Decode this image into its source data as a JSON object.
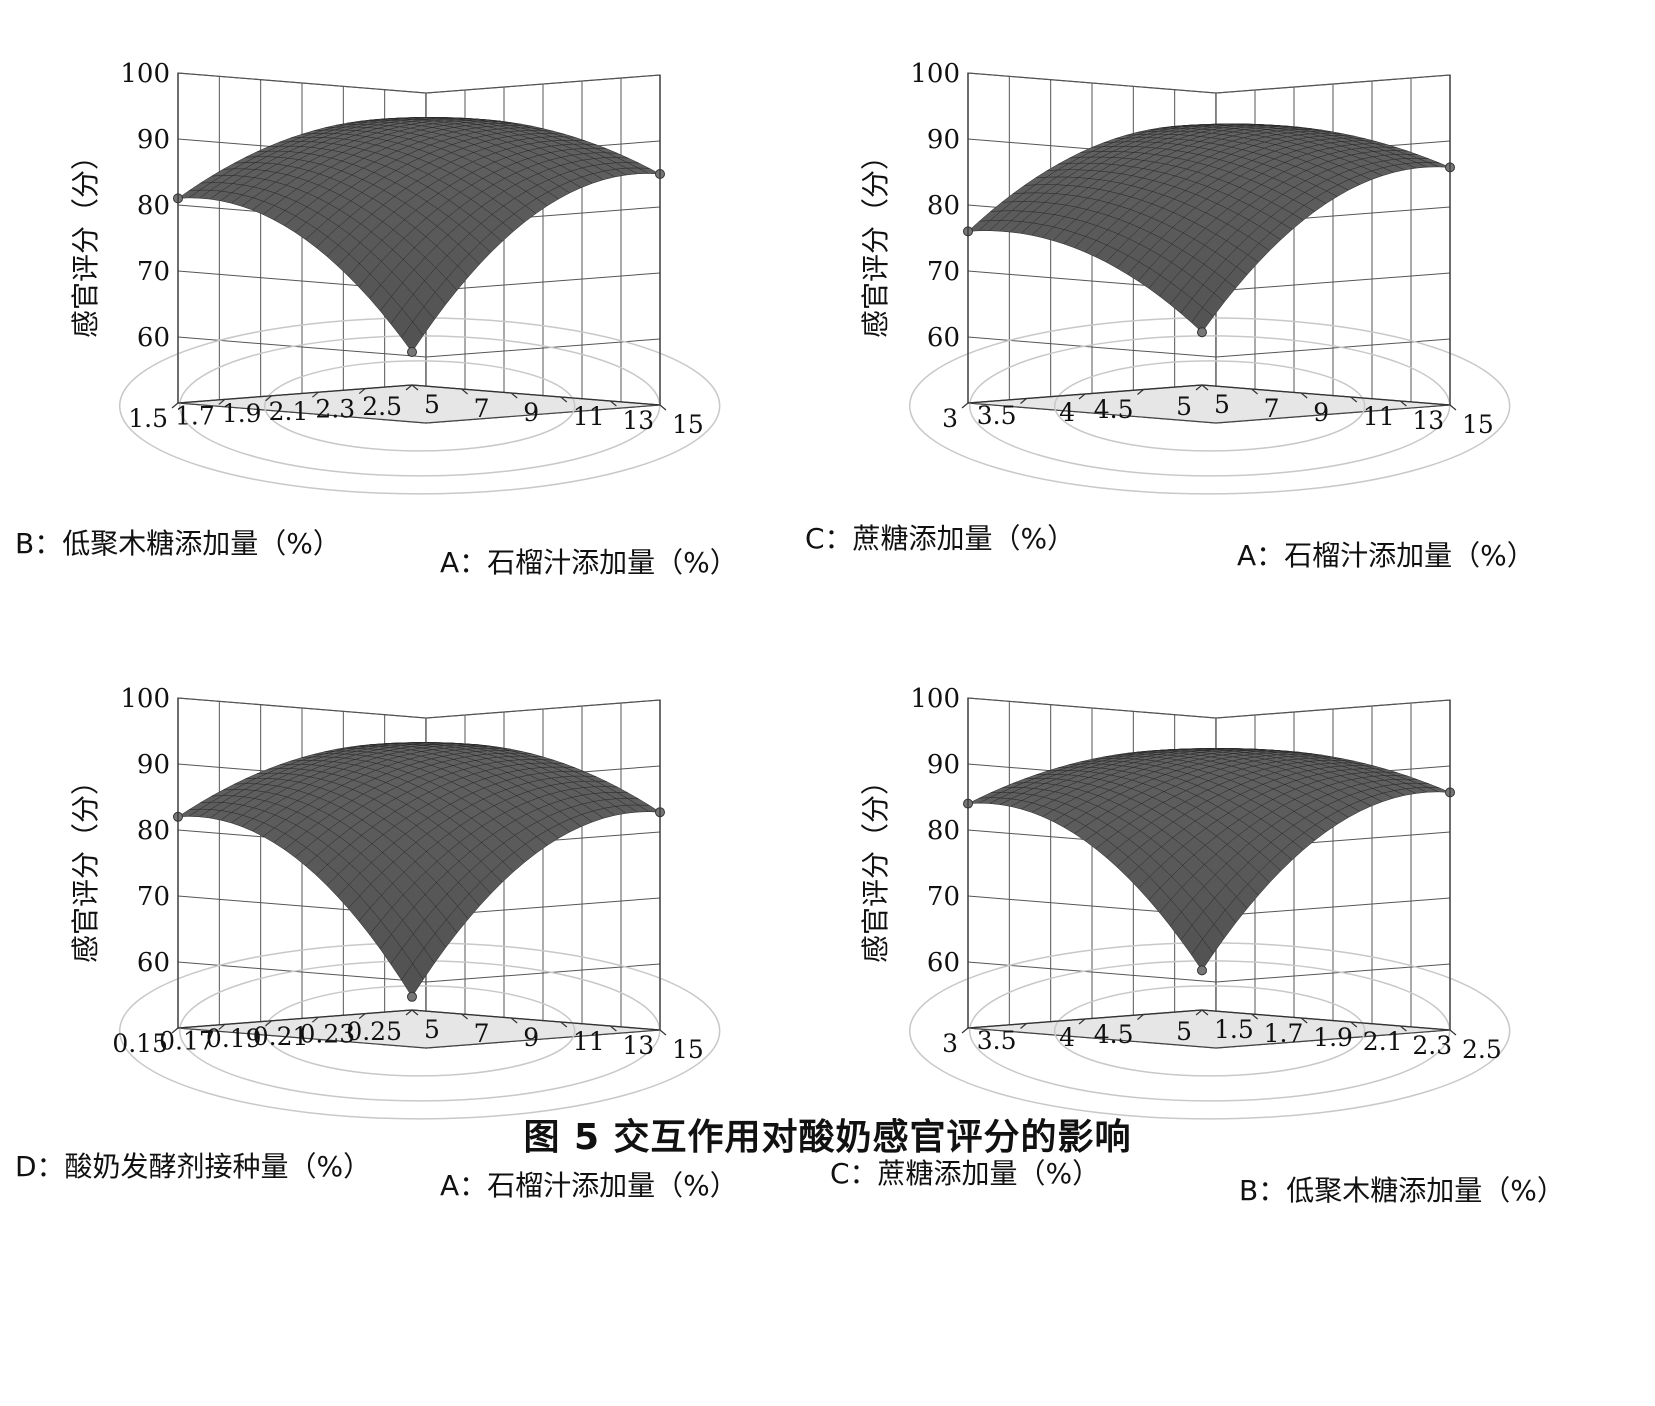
{
  "figure": {
    "caption": "图 5    交互作用对酸奶感官评分的影响",
    "surface_color": "#555555",
    "floor_color": "#e6e6e6"
  },
  "chart_data": [
    {
      "type": "surface3d",
      "zlabel": "感官评分（分）",
      "zticks": [
        "60",
        "70",
        "80",
        "90",
        "100"
      ],
      "zlim": [
        50,
        100
      ],
      "right_axis": {
        "label": "A：石榴汁添加量（%）",
        "ticks": [
          "5",
          "7",
          "9",
          "11",
          "13",
          "15"
        ],
        "range": [
          5,
          15
        ]
      },
      "left_axis": {
        "label": "B：低聚木糖添加量（%）",
        "ticks": [
          "1.5",
          "1.7",
          "1.9",
          "2.1",
          "2.3",
          "2.5"
        ],
        "range": [
          1.5,
          2.5
        ]
      },
      "surface": {
        "center": 96,
        "left_end": 81,
        "right_end": 85,
        "near_corner": 55
      }
    },
    {
      "type": "surface3d",
      "zlabel": "感官评分（分）",
      "zticks": [
        "60",
        "70",
        "80",
        "90",
        "100"
      ],
      "zlim": [
        50,
        100
      ],
      "right_axis": {
        "label": "A：石榴汁添加量（%）",
        "ticks": [
          "5",
          "7",
          "9",
          "11",
          "13",
          "15"
        ],
        "range": [
          5,
          15
        ]
      },
      "left_axis": {
        "label": "C：蔗糖添加量（%）",
        "ticks": [
          "3",
          "3.5",
          "4",
          "4.5",
          "5"
        ],
        "range": [
          3,
          5
        ]
      },
      "surface": {
        "center": 95,
        "left_end": 76,
        "right_end": 86,
        "near_corner": 58
      }
    },
    {
      "type": "surface3d",
      "zlabel": "感官评分（分）",
      "zticks": [
        "60",
        "70",
        "80",
        "90",
        "100"
      ],
      "zlim": [
        50,
        100
      ],
      "right_axis": {
        "label": "A：石榴汁添加量（%）",
        "ticks": [
          "5",
          "7",
          "9",
          "11",
          "13",
          "15"
        ],
        "range": [
          5,
          15
        ]
      },
      "left_axis": {
        "label": "D：酸奶发酵剂接种量（%）",
        "ticks": [
          "0.15",
          "0.17",
          "0.19",
          "0.21",
          "0.23",
          "0.25"
        ],
        "range": [
          0.15,
          0.25
        ]
      },
      "surface": {
        "center": 96,
        "left_end": 82,
        "right_end": 83,
        "near_corner": 52
      }
    },
    {
      "type": "surface3d",
      "zlabel": "感官评分（分）",
      "zticks": [
        "60",
        "70",
        "80",
        "90",
        "100"
      ],
      "zlim": [
        50,
        100
      ],
      "right_axis": {
        "label": "B：低聚木糖添加量（%）",
        "ticks": [
          "1.5",
          "1.7",
          "1.9",
          "2.1",
          "2.3",
          "2.5"
        ],
        "range": [
          1.5,
          2.5
        ]
      },
      "left_axis": {
        "label": "C：蔗糖添加量（%）",
        "ticks": [
          "3",
          "3.5",
          "4",
          "4.5",
          "5"
        ],
        "range": [
          3,
          5
        ]
      },
      "surface": {
        "center": 95,
        "left_end": 84,
        "right_end": 86,
        "near_corner": 56
      }
    }
  ]
}
